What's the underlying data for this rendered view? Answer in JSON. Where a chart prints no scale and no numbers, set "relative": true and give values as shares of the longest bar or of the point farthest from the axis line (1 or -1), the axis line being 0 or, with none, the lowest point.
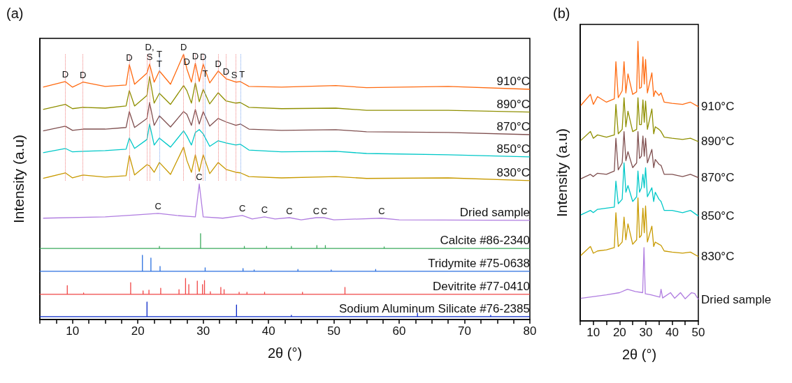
{
  "chart_data": [
    {
      "type": "line",
      "title": "(a)",
      "xlabel": "2θ (°)",
      "ylabel": "Intensity (a.u)",
      "relative": true,
      "xlim": [
        5,
        80
      ],
      "xticks": [
        {
          "value": 5,
          "label": null
        },
        {
          "value": 7.5,
          "label": null
        },
        10,
        {
          "value": 12.5,
          "label": null
        },
        {
          "value": 15,
          "label": null
        },
        {
          "value": 17.5,
          "label": null
        },
        20,
        {
          "value": 22.5,
          "label": null
        },
        {
          "value": 25,
          "label": null
        },
        {
          "value": 27.5,
          "label": null
        },
        30,
        {
          "value": 32.5,
          "label": null
        },
        {
          "value": 35,
          "label": null
        },
        {
          "value": 37.5,
          "label": null
        },
        40,
        {
          "value": 42.5,
          "label": null
        },
        {
          "value": 45,
          "label": null
        },
        {
          "value": 47.5,
          "label": null
        },
        50,
        {
          "value": 52.5,
          "label": null
        },
        {
          "value": 55,
          "label": null
        },
        {
          "value": 57.5,
          "label": null
        },
        60,
        {
          "value": 62.5,
          "label": null
        },
        {
          "value": 65,
          "label": null
        },
        {
          "value": 67.5,
          "label": null
        },
        70,
        {
          "value": 72.5,
          "label": null
        },
        {
          "value": 75,
          "label": null
        },
        {
          "value": 77.5,
          "label": null
        },
        80
      ],
      "x": [
        5.5,
        8.9,
        10,
        11.6,
        15,
        18.2,
        18.7,
        19.5,
        21.4,
        21.8,
        22.5,
        23.3,
        25,
        27.0,
        27.5,
        28.2,
        28.8,
        29.4,
        30.0,
        31,
        32.3,
        33.5,
        35.0,
        35.7,
        37,
        42,
        50.3,
        55,
        67.5,
        80
      ],
      "series": [
        {
          "name": "910°C",
          "color": "#ff6a10",
          "values": [
            0.876,
            0.897,
            0.876,
            0.895,
            0.879,
            0.884,
            0.961,
            0.887,
            0.929,
            0.963,
            0.895,
            0.937,
            0.887,
            1.0,
            0.945,
            0.895,
            0.966,
            0.897,
            0.963,
            0.892,
            0.937,
            0.908,
            0.895,
            0.897,
            0.879,
            0.876,
            0.882,
            0.874,
            0.879,
            0.868
          ]
        },
        {
          "name": "890°C",
          "color": "#8f8f00",
          "values": [
            0.792,
            0.811,
            0.795,
            0.8,
            0.797,
            0.805,
            0.863,
            0.805,
            0.845,
            0.916,
            0.816,
            0.853,
            0.811,
            0.882,
            0.863,
            0.816,
            0.892,
            0.821,
            0.868,
            0.813,
            0.855,
            0.824,
            0.816,
            0.818,
            0.8,
            0.795,
            0.797,
            0.789,
            0.789,
            0.782
          ]
        },
        {
          "name": "870°C",
          "color": "#7f4f4f",
          "values": [
            0.711,
            0.729,
            0.713,
            0.718,
            0.718,
            0.724,
            0.784,
            0.724,
            0.758,
            0.818,
            0.732,
            0.768,
            0.726,
            0.784,
            0.774,
            0.732,
            0.792,
            0.737,
            0.784,
            0.729,
            0.758,
            0.745,
            0.732,
            0.737,
            0.718,
            0.713,
            0.716,
            0.708,
            0.705,
            0.697
          ]
        },
        {
          "name": "850°C",
          "color": "#00c8c8",
          "values": [
            0.629,
            0.645,
            0.632,
            0.634,
            0.637,
            0.642,
            0.684,
            0.645,
            0.679,
            0.737,
            0.658,
            0.684,
            0.65,
            0.711,
            0.692,
            0.658,
            0.705,
            0.716,
            0.7,
            0.653,
            0.674,
            0.666,
            0.658,
            0.661,
            0.639,
            0.632,
            0.634,
            0.626,
            0.621,
            0.613
          ]
        },
        {
          "name": "830°C",
          "color": "#c89a00",
          "values": [
            0.532,
            0.553,
            0.534,
            0.545,
            0.537,
            0.542,
            0.618,
            0.545,
            0.584,
            0.579,
            0.555,
            0.592,
            0.547,
            0.65,
            0.6,
            0.555,
            0.621,
            0.558,
            0.621,
            0.55,
            0.592,
            0.566,
            0.555,
            0.553,
            0.539,
            0.534,
            0.539,
            0.532,
            0.534,
            0.524
          ]
        },
        {
          "name": "Dried sample",
          "color": "#b07de0",
          "x": [
            5.5,
            15,
            20,
            23.1,
            26,
            28.8,
            29.4,
            30,
            33,
            36.0,
            37.5,
            39.4,
            41,
            43.2,
            45,
            47.3,
            48.5,
            50,
            57.3,
            60,
            80
          ],
          "values": [
            0.382,
            0.387,
            0.395,
            0.4,
            0.392,
            0.387,
            0.511,
            0.387,
            0.382,
            0.392,
            0.379,
            0.387,
            0.379,
            0.384,
            0.376,
            0.384,
            0.384,
            0.376,
            0.382,
            0.376,
            0.374
          ]
        },
        {
          "name": "Calcite #86-2340",
          "color": "#3aaa5c",
          "x": [
            5,
            23.3,
            23.3,
            23.3,
            29.6,
            29.6,
            29.6,
            36.3,
            36.3,
            36.3,
            39.7,
            39.7,
            39.7,
            43.5,
            43.5,
            43.5,
            47.4,
            47.4,
            47.4,
            48.7,
            48.7,
            48.7,
            57.7,
            57.7,
            57.7,
            80
          ],
          "values": [
            0.268,
            0.268,
            0.276,
            0.268,
            0.268,
            0.324,
            0.268,
            0.268,
            0.276,
            0.268,
            0.268,
            0.276,
            0.268,
            0.268,
            0.276,
            0.268,
            0.268,
            0.279,
            0.268,
            0.268,
            0.279,
            0.268,
            0.268,
            0.274,
            0.268,
            0.268
          ]
        },
        {
          "name": "Tridymite #75-0638",
          "color": "#2a6fe0",
          "x": [
            5,
            20.7,
            20.7,
            20.7,
            22.0,
            22.0,
            22.0,
            23.4,
            23.4,
            23.4,
            30.3,
            30.3,
            30.3,
            36.1,
            36.1,
            36.1,
            37.8,
            37.8,
            37.8,
            44.5,
            44.5,
            44.5,
            49.6,
            49.6,
            49.6,
            56.4,
            56.4,
            56.4,
            80
          ],
          "values": [
            0.182,
            0.182,
            0.242,
            0.182,
            0.182,
            0.232,
            0.182,
            0.182,
            0.2,
            0.182,
            0.182,
            0.195,
            0.182,
            0.182,
            0.192,
            0.182,
            0.182,
            0.187,
            0.182,
            0.182,
            0.189,
            0.182,
            0.182,
            0.187,
            0.182,
            0.182,
            0.189,
            0.182,
            0.182
          ]
        },
        {
          "name": "Devitrite #77-0410",
          "color": "#f04545",
          "x": [
            5,
            9.2,
            9.2,
            9.2,
            11.7,
            11.7,
            11.7,
            18.9,
            18.9,
            18.9,
            20.8,
            20.8,
            20.8,
            21.7,
            21.7,
            21.7,
            23.5,
            23.5,
            23.5,
            26.3,
            26.3,
            26.3,
            27.3,
            27.3,
            27.3,
            27.8,
            27.8,
            27.8,
            29.1,
            29.1,
            29.1,
            29.9,
            29.9,
            29.9,
            30.2,
            30.2,
            30.2,
            31.1,
            31.1,
            31.1,
            32.7,
            32.7,
            32.7,
            33.2,
            33.2,
            33.2,
            35.5,
            35.5,
            35.5,
            36.7,
            36.7,
            36.7,
            39.4,
            39.4,
            39.4,
            45.2,
            45.2,
            45.2,
            51.7,
            51.7,
            51.7,
            80
          ],
          "values": [
            0.095,
            0.095,
            0.128,
            0.095,
            0.095,
            0.1,
            0.095,
            0.095,
            0.139,
            0.095,
            0.095,
            0.108,
            0.095,
            0.095,
            0.111,
            0.095,
            0.095,
            0.118,
            0.095,
            0.095,
            0.113,
            0.095,
            0.095,
            0.155,
            0.095,
            0.095,
            0.132,
            0.095,
            0.095,
            0.145,
            0.095,
            0.095,
            0.132,
            0.095,
            0.095,
            0.147,
            0.095,
            0.095,
            0.105,
            0.095,
            0.095,
            0.121,
            0.095,
            0.095,
            0.113,
            0.095,
            0.095,
            0.103,
            0.095,
            0.095,
            0.103,
            0.095,
            0.095,
            0.103,
            0.095,
            0.095,
            0.103,
            0.095,
            0.095,
            0.121,
            0.095,
            0.095
          ]
        },
        {
          "name": "Sodium Aluminum Silicate #76-2385",
          "color": "#0a28c8",
          "x": [
            5,
            21.4,
            21.4,
            21.4,
            35.1,
            35.1,
            35.1,
            43.5,
            43.5,
            43.5,
            62.8,
            62.8,
            62.8,
            74.0,
            74.0,
            74.0,
            80
          ],
          "values": [
            0.011,
            0.011,
            0.066,
            0.011,
            0.011,
            0.055,
            0.011,
            0.011,
            0.016,
            0.011,
            0.011,
            0.024,
            0.011,
            0.011,
            0.016,
            0.011,
            0.011
          ]
        }
      ],
      "ref_lines": [
        {
          "axis": "x",
          "value": 8.9,
          "color": "#f08080",
          "line_style": "dotted"
        },
        {
          "axis": "x",
          "value": 11.6,
          "color": "#f08080",
          "line_style": "dotted"
        },
        {
          "axis": "x",
          "value": 18.7,
          "color": "#f08080",
          "line_style": "dotted"
        },
        {
          "axis": "x",
          "value": 21.4,
          "color": "#f08080",
          "line_style": "dotted"
        },
        {
          "axis": "x",
          "value": 21.8,
          "color": "#f08080",
          "line_style": "dotted"
        },
        {
          "axis": "x",
          "value": 23.3,
          "color": "#7aa6f0",
          "line_style": "dotted"
        },
        {
          "axis": "x",
          "value": 27.0,
          "color": "#f08080",
          "line_style": "dotted"
        },
        {
          "axis": "x",
          "value": 28.8,
          "color": "#f08080",
          "line_style": "dotted"
        },
        {
          "axis": "x",
          "value": 30.0,
          "color": "#f08080",
          "line_style": "dotted"
        },
        {
          "axis": "x",
          "value": 30.3,
          "color": "#7aa6f0",
          "line_style": "dotted"
        },
        {
          "axis": "x",
          "value": 32.3,
          "color": "#f08080",
          "line_style": "dotted"
        },
        {
          "axis": "x",
          "value": 33.5,
          "color": "#f08080",
          "line_style": "dotted"
        },
        {
          "axis": "x",
          "value": 35.0,
          "color": "#f08080",
          "line_style": "dotted"
        },
        {
          "axis": "x",
          "value": 35.7,
          "color": "#7aa6f0",
          "line_style": "dotted"
        }
      ],
      "annotations": [
        {
          "text": "D",
          "x": 8.9,
          "y": 0.897
        },
        {
          "text": "D",
          "x": 11.6,
          "y": 0.895
        },
        {
          "text": "D",
          "x": 18.7,
          "y": 0.961
        },
        {
          "text": "D,\nS",
          "x": 21.8,
          "y": 0.963
        },
        {
          "text": "T\nT",
          "x": 23.3,
          "y": 0.937
        },
        {
          "text": "D",
          "x": 27.0,
          "y": 1.0
        },
        {
          "text": "D",
          "x": 27.5,
          "y": 0.945
        },
        {
          "text": "D",
          "x": 28.8,
          "y": 0.966
        },
        {
          "text": "D",
          "x": 30.0,
          "y": 0.963
        },
        {
          "text": "T",
          "x": 30.3,
          "y": 0.9
        },
        {
          "text": "D",
          "x": 32.3,
          "y": 0.937
        },
        {
          "text": "D",
          "x": 33.5,
          "y": 0.908
        },
        {
          "text": "S",
          "x": 35.0,
          "y": 0.895
        },
        {
          "text": "T",
          "x": 35.7,
          "y": 0.897
        },
        {
          "text": "C",
          "x": 23.1,
          "y": 0.4
        },
        {
          "text": "C",
          "x": 29.4,
          "y": 0.511
        },
        {
          "text": "C",
          "x": 36.0,
          "y": 0.392
        },
        {
          "text": "C",
          "x": 39.4,
          "y": 0.387
        },
        {
          "text": "C",
          "x": 43.2,
          "y": 0.384
        },
        {
          "text": "C",
          "x": 47.3,
          "y": 0.384
        },
        {
          "text": "C",
          "x": 48.5,
          "y": 0.384
        },
        {
          "text": "C",
          "x": 57.3,
          "y": 0.382
        }
      ]
    },
    {
      "type": "line",
      "title": "(b)",
      "xlabel": "2θ (°)",
      "ylabel": "Intensity (a.u)",
      "relative": true,
      "xlim": [
        5,
        50
      ],
      "xticks": [
        {
          "value": 5,
          "label": null
        },
        10,
        {
          "value": 15,
          "label": null
        },
        20,
        {
          "value": 25,
          "label": null
        },
        30,
        {
          "value": 35,
          "label": null
        },
        40,
        {
          "value": 45,
          "label": null
        },
        50
      ],
      "x": [
        5.2,
        8.9,
        10,
        11.6,
        15,
        18,
        18.6,
        19.5,
        21.0,
        21.7,
        22.4,
        23.2,
        25,
        26.5,
        27.0,
        27.6,
        28.3,
        28.9,
        29.4,
        29.9,
        30.6,
        32.3,
        33.0,
        33.6,
        35.0,
        35.8,
        37,
        40,
        44,
        47,
        50
      ],
      "series": [
        {
          "name": "910°C",
          "color": "#ff6a10",
          "values": [
            0.77,
            0.81,
            0.774,
            0.802,
            0.782,
            0.794,
            0.927,
            0.798,
            0.823,
            0.927,
            0.815,
            0.883,
            0.81,
            0.819,
            1.0,
            0.831,
            0.835,
            0.944,
            0.847,
            0.935,
            0.815,
            0.887,
            0.802,
            0.823,
            0.806,
            0.815,
            0.782,
            0.778,
            0.774,
            0.782,
            0.766
          ]
        },
        {
          "name": "890°C",
          "color": "#8f8f00",
          "values": [
            0.645,
            0.677,
            0.653,
            0.665,
            0.657,
            0.665,
            0.774,
            0.669,
            0.685,
            0.798,
            0.694,
            0.75,
            0.677,
            0.685,
            0.798,
            0.702,
            0.702,
            0.79,
            0.71,
            0.786,
            0.685,
            0.758,
            0.669,
            0.694,
            0.685,
            0.677,
            0.657,
            0.653,
            0.649,
            0.653,
            0.641
          ]
        },
        {
          "name": "870°C",
          "color": "#7f4f4f",
          "values": [
            0.508,
            0.524,
            0.516,
            0.528,
            0.524,
            0.536,
            0.653,
            0.54,
            0.565,
            0.677,
            0.573,
            0.605,
            0.548,
            0.565,
            0.677,
            0.581,
            0.589,
            0.661,
            0.589,
            0.653,
            0.565,
            0.613,
            0.548,
            0.577,
            0.56,
            0.556,
            0.524,
            0.524,
            0.516,
            0.524,
            0.512
          ]
        },
        {
          "name": "850°C",
          "color": "#00c8c8",
          "values": [
            0.379,
            0.395,
            0.387,
            0.399,
            0.403,
            0.407,
            0.5,
            0.419,
            0.435,
            0.565,
            0.46,
            0.484,
            0.427,
            0.444,
            0.536,
            0.46,
            0.476,
            0.524,
            0.476,
            0.548,
            0.444,
            0.476,
            0.427,
            0.46,
            0.435,
            0.427,
            0.395,
            0.395,
            0.387,
            0.395,
            0.375
          ]
        },
        {
          "name": "830°C",
          "color": "#c89a00",
          "values": [
            0.234,
            0.266,
            0.242,
            0.25,
            0.254,
            0.262,
            0.387,
            0.266,
            0.282,
            0.371,
            0.29,
            0.347,
            0.274,
            0.29,
            0.44,
            0.298,
            0.306,
            0.403,
            0.315,
            0.411,
            0.282,
            0.339,
            0.266,
            0.282,
            0.274,
            0.27,
            0.25,
            0.246,
            0.242,
            0.246,
            0.23
          ]
        },
        {
          "name": "Dried sample",
          "color": "#b07de0",
          "x": [
            5.2,
            15,
            20,
            23,
            26,
            28.8,
            29.3,
            29.8,
            32,
            35.3,
            35.8,
            36.4,
            39.4,
            41,
            43.2,
            45,
            47.4,
            48.6,
            50
          ],
          "values": [
            0.081,
            0.093,
            0.101,
            0.113,
            0.105,
            0.101,
            0.262,
            0.097,
            0.093,
            0.085,
            0.113,
            0.082,
            0.101,
            0.081,
            0.101,
            0.079,
            0.101,
            0.098,
            0.077
          ]
        }
      ]
    }
  ]
}
